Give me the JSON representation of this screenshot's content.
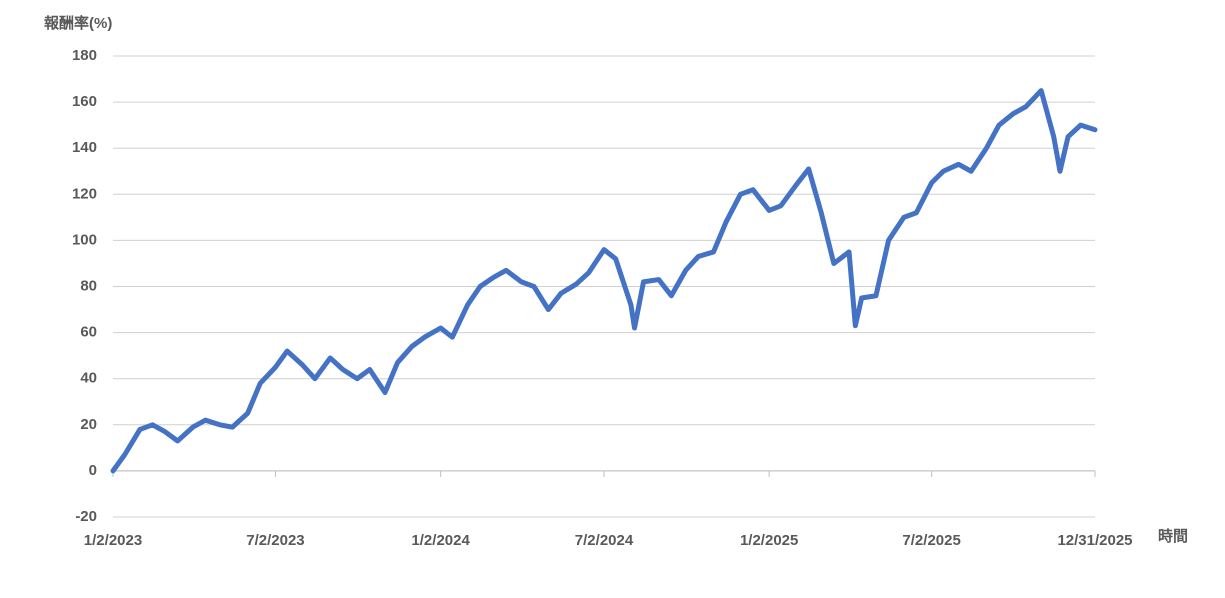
{
  "chart_data": {
    "type": "line",
    "y_label": "報酬率(%)",
    "x_label": "時間",
    "x": [
      "1/2/2023",
      "1/15/2023",
      "2/1/2023",
      "2/15/2023",
      "3/1/2023",
      "3/15/2023",
      "4/1/2023",
      "4/15/2023",
      "5/1/2023",
      "5/15/2023",
      "6/1/2023",
      "6/15/2023",
      "7/2/2023",
      "7/15/2023",
      "8/1/2023",
      "8/15/2023",
      "9/1/2023",
      "9/15/2023",
      "10/1/2023",
      "10/15/2023",
      "11/1/2023",
      "11/15/2023",
      "12/1/2023",
      "12/15/2023",
      "1/2/2024",
      "1/15/2024",
      "2/1/2024",
      "2/15/2024",
      "3/1/2024",
      "3/15/2024",
      "4/1/2024",
      "4/15/2024",
      "5/1/2024",
      "5/15/2024",
      "6/1/2024",
      "6/15/2024",
      "7/2/2024",
      "7/15/2024",
      "8/1/2024",
      "8/5/2024",
      "8/15/2024",
      "9/1/2024",
      "9/15/2024",
      "10/1/2024",
      "10/15/2024",
      "11/1/2024",
      "11/15/2024",
      "12/1/2024",
      "12/15/2024",
      "1/2/2025",
      "1/15/2025",
      "2/1/2025",
      "2/15/2025",
      "3/1/2025",
      "3/15/2025",
      "4/1/2025",
      "4/8/2025",
      "4/15/2025",
      "5/1/2025",
      "5/15/2025",
      "6/1/2025",
      "6/15/2025",
      "7/2/2025",
      "7/15/2025",
      "8/1/2025",
      "8/15/2025",
      "9/1/2025",
      "9/15/2025",
      "10/1/2025",
      "10/15/2025",
      "11/1/2025",
      "11/15/2025",
      "11/22/2025",
      "12/1/2025",
      "12/15/2025",
      "12/31/2025"
    ],
    "series": [
      {
        "color": "#4472c4",
        "values": [
          0,
          7,
          18,
          20,
          17,
          13,
          19,
          22,
          20,
          19,
          25,
          38,
          45,
          52,
          46,
          40,
          49,
          44,
          40,
          44,
          34,
          47,
          54,
          58,
          62,
          58,
          72,
          80,
          84,
          87,
          82,
          80,
          70,
          77,
          81,
          86,
          96,
          92,
          72,
          62,
          82,
          83,
          76,
          87,
          93,
          95,
          108,
          120,
          122,
          113,
          115,
          124,
          131,
          112,
          90,
          95,
          63,
          75,
          76,
          100,
          110,
          112,
          125,
          130,
          133,
          130,
          140,
          150,
          155,
          158,
          165,
          145,
          130,
          145,
          150,
          148
        ]
      }
    ],
    "xlim": [
      "1/2/2023",
      "12/31/2025"
    ],
    "xticks": [
      "1/2/2023",
      "7/2/2023",
      "1/2/2024",
      "7/2/2024",
      "1/2/2025",
      "7/2/2025",
      "12/31/2025"
    ],
    "ylim": [
      -20,
      180
    ],
    "yticks": [
      -20,
      0,
      20,
      40,
      60,
      80,
      100,
      120,
      140,
      160,
      180
    ],
    "grid": true
  }
}
